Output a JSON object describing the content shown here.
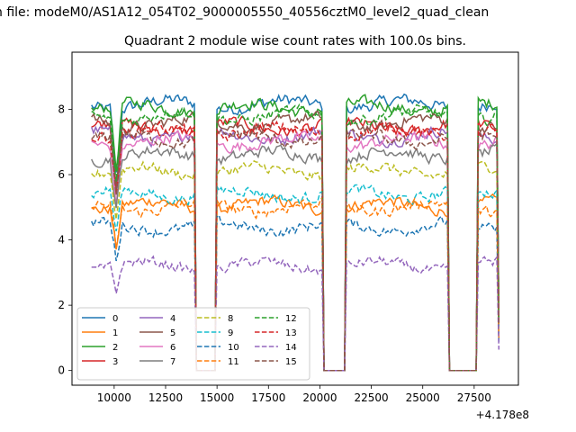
{
  "chart_data": {
    "type": "line",
    "suptitle": "n file: modeM0/AS1A12_054T02_9000005550_40556cztM0_level2_quad_clean",
    "title": "Quadrant 2 module wise count rates with 100.0s bins.",
    "xlabel": "",
    "ylabel": "",
    "x_offset_label": "+4.178e8",
    "x_range": [
      8900,
      28700
    ],
    "xlim": [
      7950,
      29650
    ],
    "ylim": [
      -0.45,
      9.75
    ],
    "x_ticks": [
      10000,
      12500,
      15000,
      17500,
      20000,
      22500,
      25000,
      27500
    ],
    "x_tick_labels": [
      "10000",
      "12500",
      "15000",
      "17500",
      "20000",
      "22500",
      "25000",
      "27500"
    ],
    "y_ticks": [
      0,
      2,
      4,
      6,
      8
    ],
    "y_tick_labels": [
      "0",
      "2",
      "4",
      "6",
      "8"
    ],
    "bin_width_s": 100,
    "zero_intervals": [
      [
        14000,
        14900
      ],
      [
        20200,
        21200
      ],
      [
        26300,
        27600
      ]
    ],
    "legend": {
      "location": "lower left",
      "columns": 4,
      "labels": [
        "0",
        "1",
        "2",
        "3",
        "4",
        "5",
        "6",
        "7",
        "8",
        "9",
        "10",
        "11",
        "12",
        "13",
        "14",
        "15"
      ]
    },
    "series": [
      {
        "name": "0",
        "color": "#1f77b4",
        "linestyle": "solid",
        "level": 8.15
      },
      {
        "name": "1",
        "color": "#ff7f0e",
        "linestyle": "solid",
        "level": 5.05
      },
      {
        "name": "2",
        "color": "#2ca02c",
        "linestyle": "solid",
        "level": 8.05
      },
      {
        "name": "3",
        "color": "#d62728",
        "linestyle": "solid",
        "level": 7.45
      },
      {
        "name": "4",
        "color": "#9467bd",
        "linestyle": "solid",
        "level": 7.2
      },
      {
        "name": "5",
        "color": "#8c564b",
        "linestyle": "solid",
        "level": 7.6
      },
      {
        "name": "6",
        "color": "#e377c2",
        "linestyle": "solid",
        "level": 7.0
      },
      {
        "name": "7",
        "color": "#7f7f7f",
        "linestyle": "solid",
        "level": 6.6
      },
      {
        "name": "8",
        "color": "#bcbd22",
        "linestyle": "dashed",
        "level": 6.1
      },
      {
        "name": "9",
        "color": "#17becf",
        "linestyle": "dashed",
        "level": 5.4
      },
      {
        "name": "10",
        "color": "#1f77b4",
        "linestyle": "dashed",
        "level": 4.4
      },
      {
        "name": "11",
        "color": "#ff7f0e",
        "linestyle": "dashed",
        "level": 5.0
      },
      {
        "name": "12",
        "color": "#2ca02c",
        "linestyle": "dashed",
        "level": 7.8
      },
      {
        "name": "13",
        "color": "#d62728",
        "linestyle": "dashed",
        "level": 7.3
      },
      {
        "name": "14",
        "color": "#9467bd",
        "linestyle": "dashed",
        "level": 3.2
      },
      {
        "name": "15",
        "color": "#8c564b",
        "linestyle": "dashed",
        "level": 7.1
      }
    ]
  }
}
